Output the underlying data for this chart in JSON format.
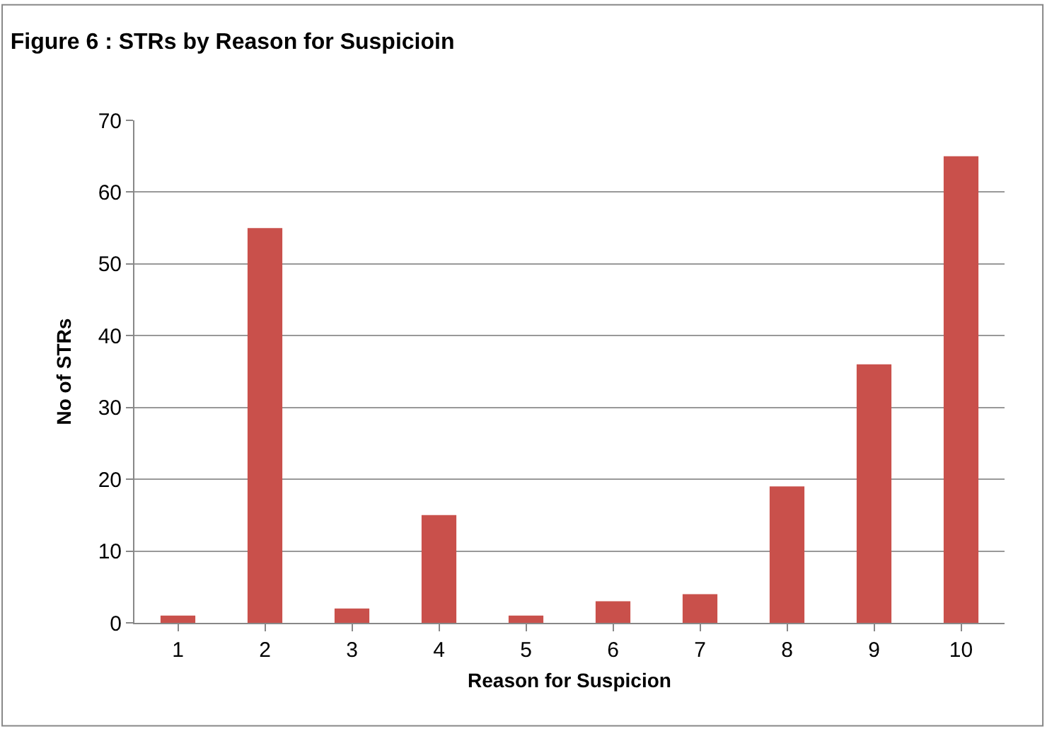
{
  "chart_data": {
    "type": "bar",
    "title": "Figure 6 : STRs by Reason for Suspicioin",
    "xlabel": "Reason for Suspicion",
    "ylabel": "No of STRs",
    "categories": [
      "1",
      "2",
      "3",
      "4",
      "5",
      "6",
      "7",
      "8",
      "9",
      "10"
    ],
    "values": [
      1,
      55,
      2,
      15,
      1,
      3,
      4,
      19,
      36,
      65
    ],
    "color": "#c9504b",
    "ylim": [
      0,
      70
    ],
    "yticks": [
      0,
      10,
      20,
      30,
      40,
      50,
      60,
      70
    ],
    "grid": "y"
  }
}
